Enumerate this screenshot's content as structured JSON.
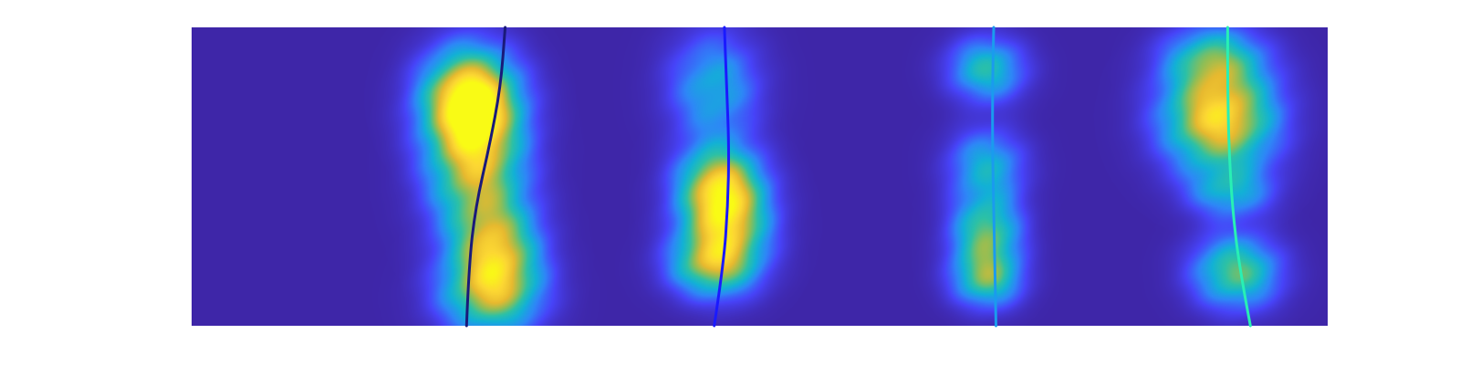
{
  "chart_data": {
    "type": "heatmap",
    "title": "",
    "xlabel": "",
    "ylabel": "",
    "axes_visible": false,
    "grid": false,
    "colormap": "parula",
    "colormap_stops": [
      "#3e26a8",
      "#4743f8",
      "#2e87f7",
      "#12b1d6",
      "#2cc1a6",
      "#8dbe57",
      "#e7b92f",
      "#fcd733",
      "#f9fb15"
    ],
    "xlim": [
      0,
      1
    ],
    "ylim": [
      0,
      1
    ],
    "blobs": [
      {
        "x": 0.245,
        "y": 0.24,
        "sx": 0.027,
        "sy": 0.11,
        "a": 1.0
      },
      {
        "x": 0.25,
        "y": 0.45,
        "sx": 0.028,
        "sy": 0.16,
        "a": 0.75
      },
      {
        "x": 0.268,
        "y": 0.76,
        "sx": 0.025,
        "sy": 0.12,
        "a": 0.72
      },
      {
        "x": 0.262,
        "y": 0.9,
        "sx": 0.03,
        "sy": 0.09,
        "a": 0.5
      },
      {
        "x": 0.47,
        "y": 0.66,
        "sx": 0.025,
        "sy": 0.11,
        "a": 0.78
      },
      {
        "x": 0.465,
        "y": 0.52,
        "sx": 0.024,
        "sy": 0.09,
        "a": 0.65
      },
      {
        "x": 0.458,
        "y": 0.8,
        "sx": 0.025,
        "sy": 0.07,
        "a": 0.55
      },
      {
        "x": 0.46,
        "y": 0.2,
        "sx": 0.026,
        "sy": 0.12,
        "a": 0.38
      },
      {
        "x": 0.7,
        "y": 0.7,
        "sx": 0.02,
        "sy": 0.1,
        "a": 0.62
      },
      {
        "x": 0.7,
        "y": 0.85,
        "sx": 0.02,
        "sy": 0.06,
        "a": 0.45
      },
      {
        "x": 0.7,
        "y": 0.46,
        "sx": 0.022,
        "sy": 0.08,
        "a": 0.38
      },
      {
        "x": 0.7,
        "y": 0.14,
        "sx": 0.022,
        "sy": 0.07,
        "a": 0.48
      },
      {
        "x": 0.905,
        "y": 0.3,
        "sx": 0.032,
        "sy": 0.12,
        "a": 0.95
      },
      {
        "x": 0.92,
        "y": 0.82,
        "sx": 0.025,
        "sy": 0.08,
        "a": 0.6
      },
      {
        "x": 0.915,
        "y": 0.55,
        "sx": 0.024,
        "sy": 0.06,
        "a": 0.35
      },
      {
        "x": 0.9,
        "y": 0.1,
        "sx": 0.028,
        "sy": 0.07,
        "a": 0.45
      }
    ],
    "series": [
      {
        "color": "#1a1a7a",
        "points": [
          [
            0.242,
            0.0
          ],
          [
            0.244,
            0.2
          ],
          [
            0.25,
            0.4
          ],
          [
            0.262,
            0.6
          ],
          [
            0.272,
            0.8
          ],
          [
            0.276,
            1.0
          ]
        ]
      },
      {
        "color": "#1a1aff",
        "points": [
          [
            0.46,
            0.0
          ],
          [
            0.468,
            0.2
          ],
          [
            0.472,
            0.4
          ],
          [
            0.473,
            0.6
          ],
          [
            0.471,
            0.8
          ],
          [
            0.469,
            1.0
          ]
        ]
      },
      {
        "color": "#1a9bee",
        "points": [
          [
            0.708,
            0.0
          ],
          [
            0.707,
            0.2
          ],
          [
            0.706,
            0.4
          ],
          [
            0.705,
            0.6
          ],
          [
            0.705,
            0.8
          ],
          [
            0.706,
            1.0
          ]
        ]
      },
      {
        "color": "#28f0b4",
        "points": [
          [
            0.932,
            0.0
          ],
          [
            0.922,
            0.2
          ],
          [
            0.916,
            0.4
          ],
          [
            0.913,
            0.6
          ],
          [
            0.912,
            0.8
          ],
          [
            0.912,
            1.0
          ]
        ]
      }
    ]
  }
}
